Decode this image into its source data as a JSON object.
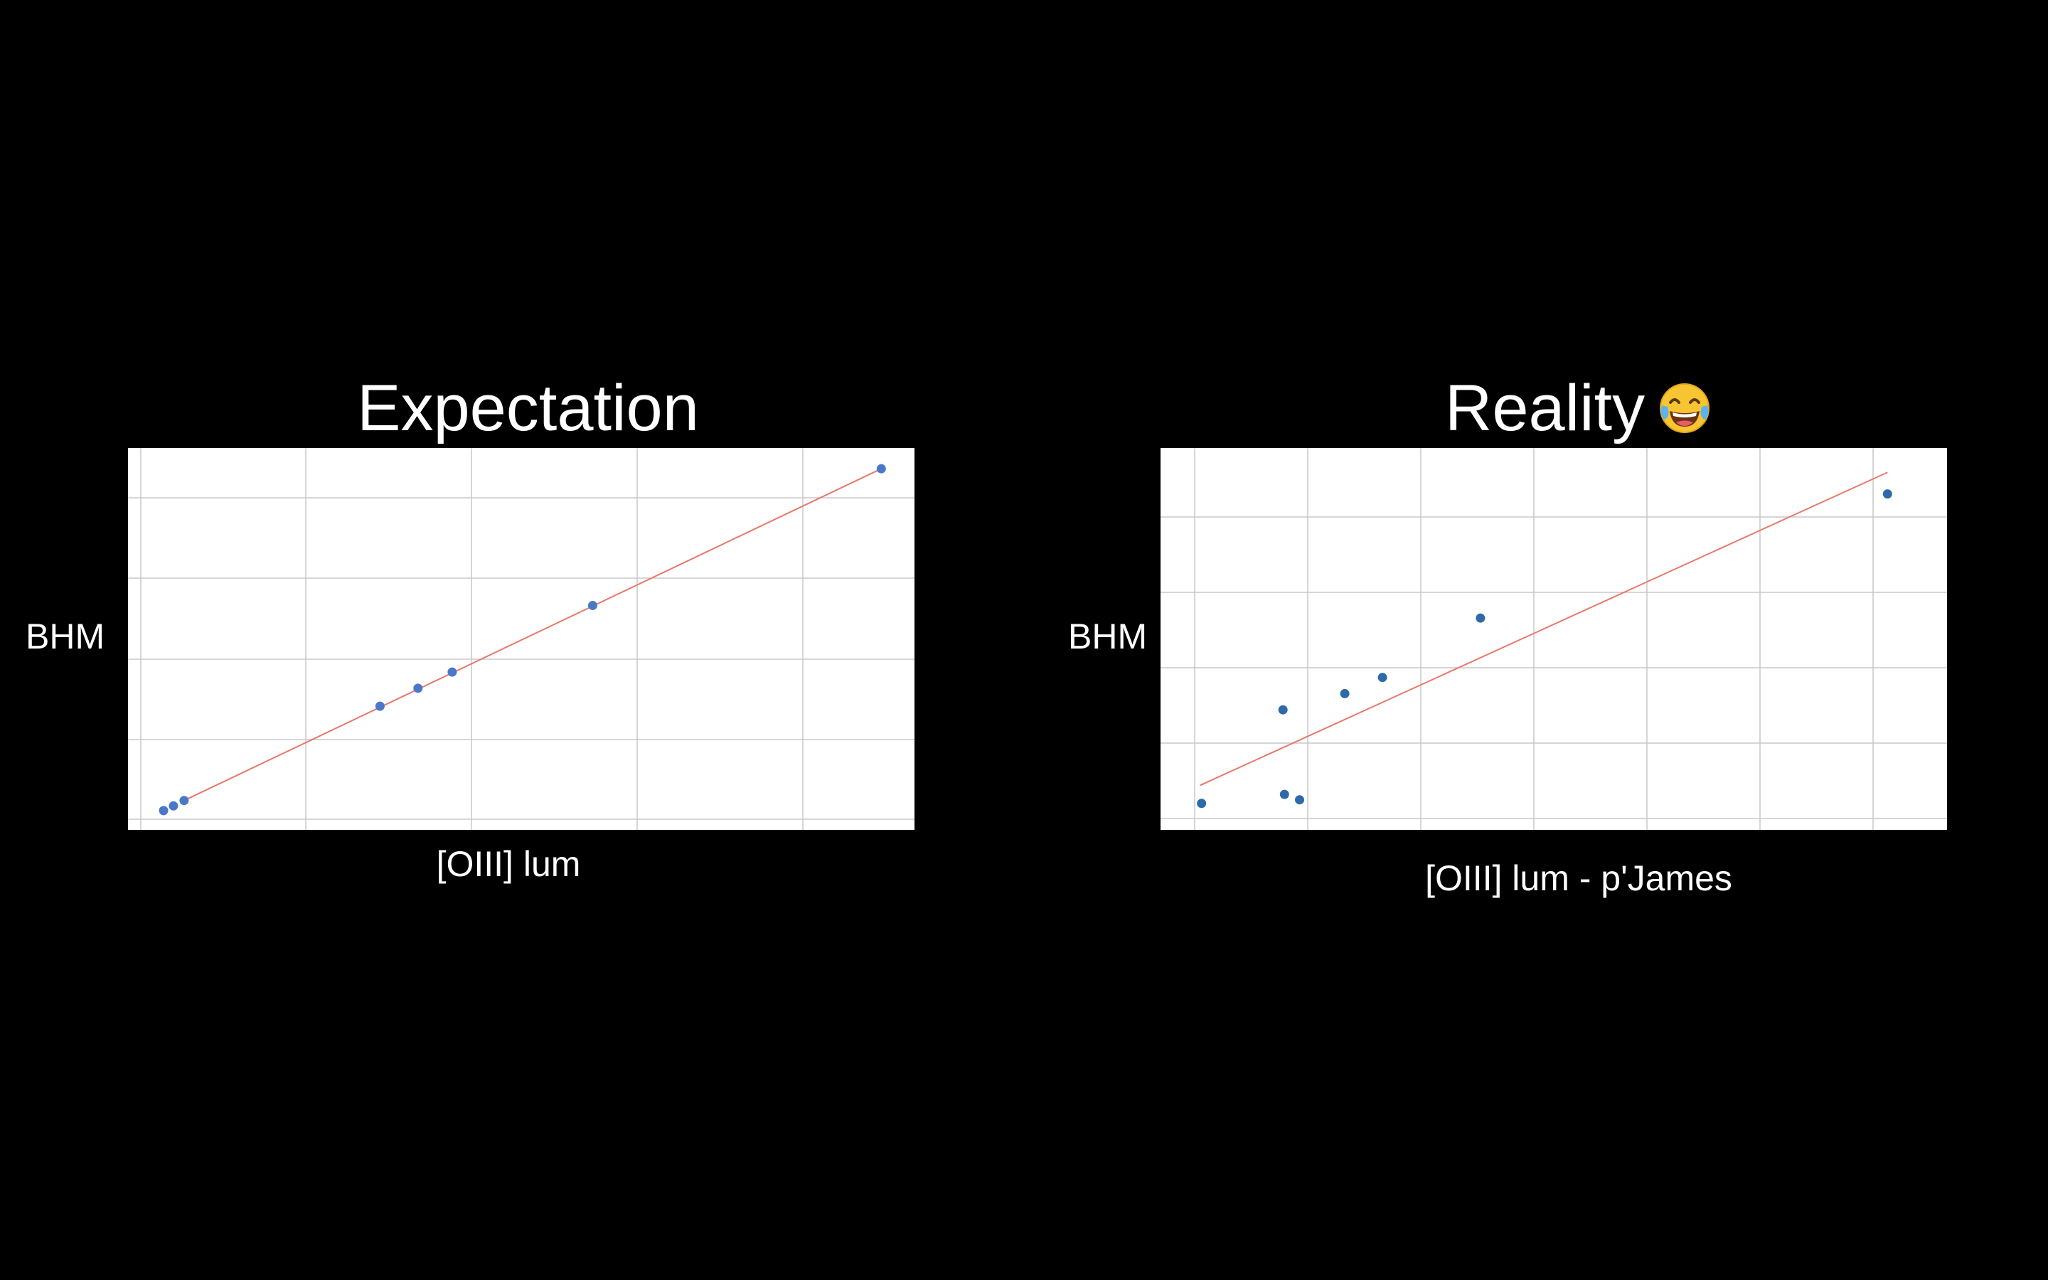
{
  "chart_data": [
    {
      "type": "scatter",
      "title": "Expectation",
      "xlabel": "[OIII] lum",
      "ylabel": "BHM",
      "grid": true,
      "xlim": [
        0,
        100
      ],
      "ylim": [
        0,
        100
      ],
      "point_color": "#4a78c8",
      "fit_color": "#e8786a",
      "points": [
        {
          "x": 3,
          "y": 2
        },
        {
          "x": 4.3,
          "y": 3.3
        },
        {
          "x": 5.7,
          "y": 4.8
        },
        {
          "x": 31.5,
          "y": 31
        },
        {
          "x": 36.5,
          "y": 36
        },
        {
          "x": 41,
          "y": 40.5
        },
        {
          "x": 59.5,
          "y": 59
        },
        {
          "x": 97.5,
          "y": 97
        }
      ],
      "fit_line": [
        {
          "x": 5.7,
          "y": 4.8
        },
        {
          "x": 97.5,
          "y": 97
        }
      ]
    },
    {
      "type": "scatter",
      "title": "Reality",
      "title_icon": "tears-of-joy-emoji-icon",
      "xlabel": "[OIII] lum - p'James",
      "ylabel": "BHM",
      "grid": true,
      "xlim": [
        0,
        100
      ],
      "ylim": [
        0,
        100
      ],
      "point_color": "#2e6aa8",
      "fit_color": "#e8786a",
      "points": [
        {
          "x": 4.5,
          "y": 4
        },
        {
          "x": 15.5,
          "y": 6.5
        },
        {
          "x": 17.5,
          "y": 5
        },
        {
          "x": 15.3,
          "y": 30
        },
        {
          "x": 23.5,
          "y": 34.5
        },
        {
          "x": 28.5,
          "y": 39
        },
        {
          "x": 41.5,
          "y": 55.5
        },
        {
          "x": 95.5,
          "y": 90
        }
      ],
      "fit_line": [
        {
          "x": 4.3,
          "y": 9
        },
        {
          "x": 95.5,
          "y": 96
        }
      ]
    }
  ]
}
